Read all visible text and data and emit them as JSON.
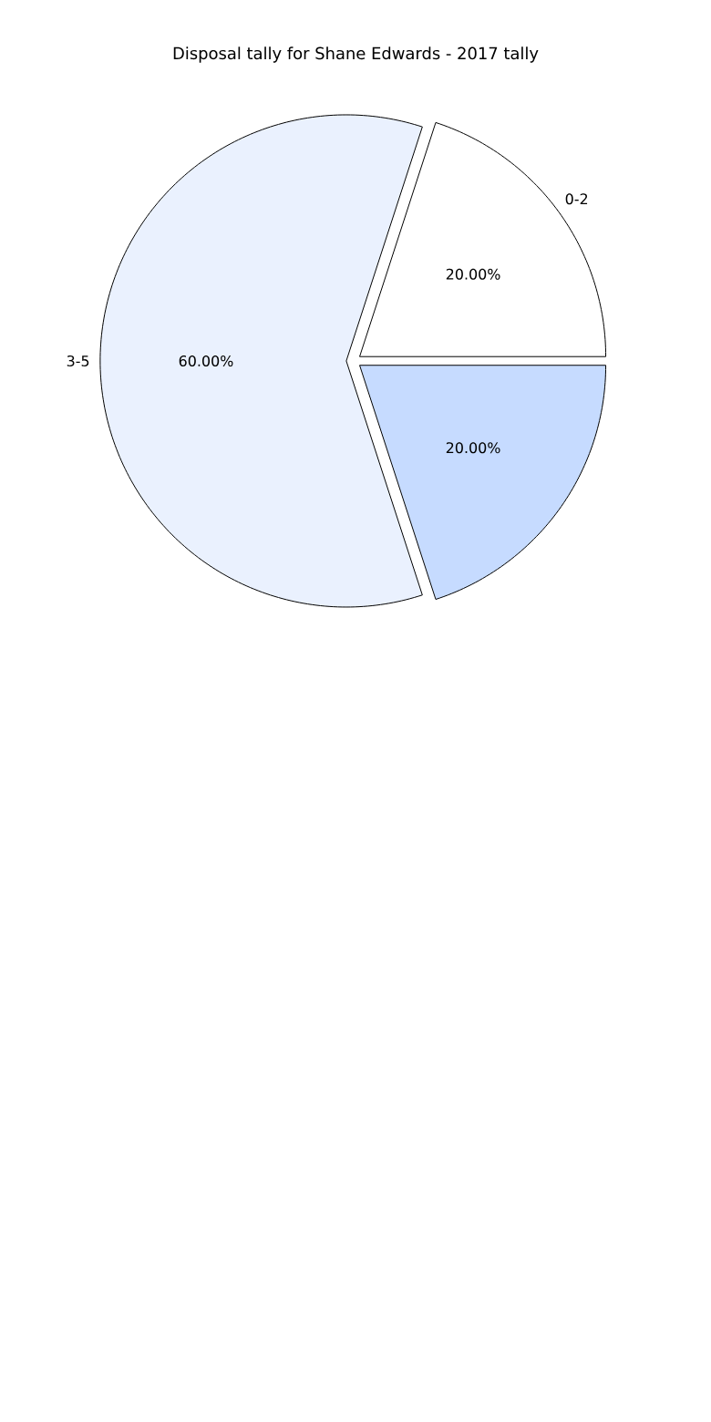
{
  "chart_data": {
    "type": "pie",
    "title": "Disposal tally for Shane Edwards - 2017 tally",
    "categories": [
      "0-2",
      "3-5",
      null
    ],
    "values": [
      20,
      60,
      20
    ],
    "colors": [
      "#ffffff",
      "#eaf1fe",
      "#c6dbff"
    ],
    "value_labels": [
      "20.00%",
      "60.00%",
      "20.00%"
    ]
  }
}
